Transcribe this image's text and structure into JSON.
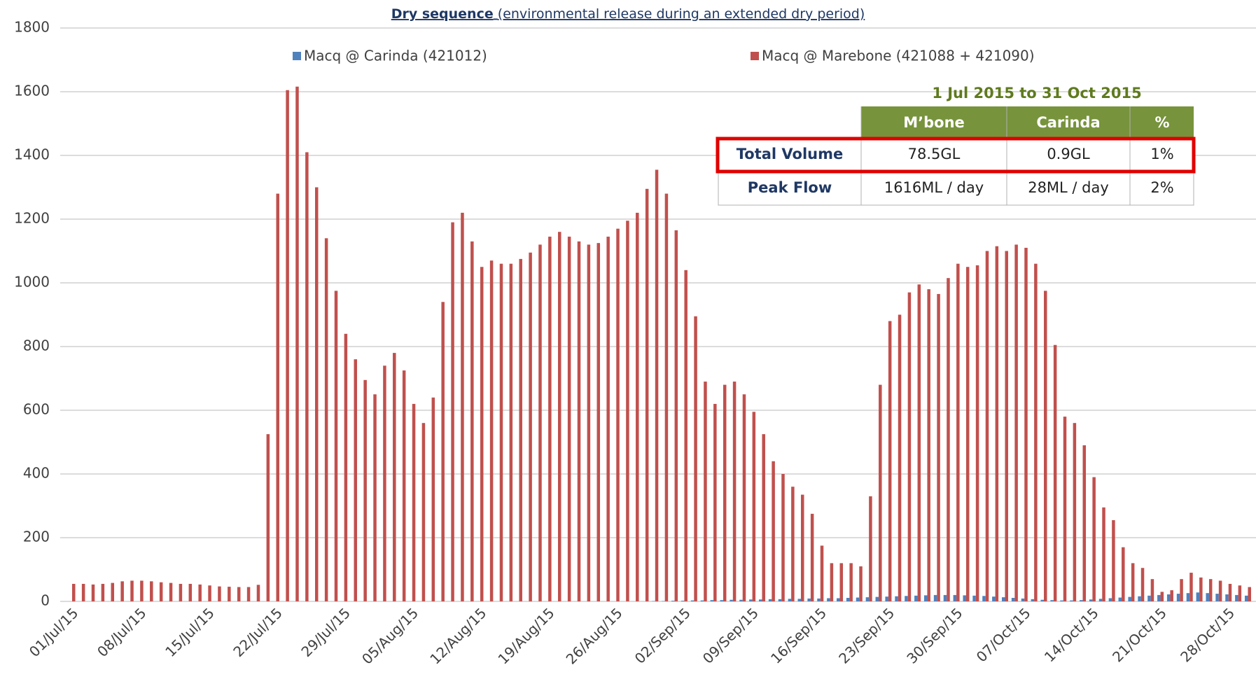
{
  "chart_data": {
    "type": "bar",
    "title": "Dry sequence",
    "subtitle": "(environmental release during an extended dry period)",
    "categories": [
      "01/Jul/15",
      null,
      null,
      null,
      null,
      null,
      null,
      "08/Jul/15",
      null,
      null,
      null,
      null,
      null,
      null,
      "15/Jul/15",
      null,
      null,
      null,
      null,
      null,
      null,
      "22/Jul/15",
      null,
      null,
      null,
      null,
      null,
      null,
      "29/Jul/15",
      null,
      null,
      null,
      null,
      null,
      null,
      "05/Aug/15",
      null,
      null,
      null,
      null,
      null,
      null,
      "12/Aug/15",
      null,
      null,
      null,
      null,
      null,
      null,
      "19/Aug/15",
      null,
      null,
      null,
      null,
      null,
      null,
      "26/Aug/15",
      null,
      null,
      null,
      null,
      null,
      null,
      "02/Sep/15",
      null,
      null,
      null,
      null,
      null,
      null,
      "09/Sep/15",
      null,
      null,
      null,
      null,
      null,
      null,
      "16/Sep/15",
      null,
      null,
      null,
      null,
      null,
      null,
      "23/Sep/15",
      null,
      null,
      null,
      null,
      null,
      null,
      "30/Sep/15",
      null,
      null,
      null,
      null,
      null,
      null,
      "07/Oct/15",
      null,
      null,
      null,
      null,
      null,
      null,
      "14/Oct/15",
      null,
      null,
      null,
      null,
      null,
      null,
      "21/Oct/15",
      null,
      null,
      null,
      null,
      null,
      null,
      "28/Oct/15",
      null,
      null
    ],
    "series": [
      {
        "name": "Macq @ Carinda (421012)",
        "color": "#4f81bd",
        "values": [
          0,
          0,
          0,
          0,
          0,
          0,
          0,
          0,
          0,
          0,
          0,
          0,
          0,
          0,
          0,
          0,
          0,
          0,
          0,
          0,
          0,
          0,
          0,
          0,
          0,
          0,
          0,
          0,
          0,
          0,
          0,
          0,
          0,
          0,
          0,
          0,
          0,
          0,
          0,
          0,
          0,
          0,
          0,
          0,
          0,
          0,
          0,
          0,
          0,
          0,
          0,
          0,
          0,
          0,
          0,
          0,
          0,
          0,
          0,
          0,
          1,
          1,
          2,
          2,
          3,
          3,
          4,
          4,
          5,
          5,
          6,
          6,
          7,
          7,
          8,
          8,
          9,
          9,
          10,
          10,
          11,
          12,
          13,
          14,
          15,
          16,
          17,
          18,
          19,
          20,
          20,
          20,
          19,
          18,
          17,
          15,
          13,
          11,
          9,
          7,
          5,
          4,
          3,
          3,
          4,
          6,
          8,
          10,
          12,
          14,
          16,
          18,
          20,
          22,
          24,
          26,
          28,
          26,
          24,
          22,
          20,
          18
        ]
      },
      {
        "name": "Macq @ Marebone (421088 + 421090)",
        "color": "#c0504d",
        "values": [
          55,
          55,
          53,
          55,
          58,
          63,
          65,
          65,
          63,
          60,
          58,
          55,
          55,
          53,
          50,
          47,
          46,
          45,
          45,
          52,
          525,
          1280,
          1605,
          1616,
          1410,
          1300,
          1140,
          975,
          840,
          760,
          695,
          650,
          740,
          780,
          725,
          620,
          560,
          640,
          940,
          1190,
          1220,
          1130,
          1050,
          1070,
          1060,
          1060,
          1075,
          1095,
          1120,
          1145,
          1160,
          1145,
          1130,
          1120,
          1125,
          1145,
          1170,
          1195,
          1220,
          1295,
          1355,
          1280,
          1165,
          1040,
          895,
          690,
          620,
          680,
          690,
          650,
          595,
          525,
          440,
          400,
          360,
          335,
          275,
          175,
          120,
          120,
          120,
          110,
          330,
          680,
          880,
          900,
          970,
          995,
          980,
          965,
          1015,
          1060,
          1050,
          1055,
          1100,
          1115,
          1100,
          1120,
          1110,
          1060,
          975,
          805,
          580,
          560,
          490,
          390,
          295,
          255,
          170,
          120,
          105,
          70,
          30,
          35,
          70,
          90,
          75,
          70,
          65,
          55,
          50,
          45
        ]
      }
    ],
    "ylim": [
      0,
      1800
    ],
    "yticks": [
      0,
      200,
      400,
      600,
      800,
      1000,
      1200,
      1400,
      1600,
      1800
    ],
    "grid": true,
    "table": {
      "title": "1 Jul 2015 to 31 Oct 2015",
      "headers": [
        "M’bone",
        "Carinda",
        "%"
      ],
      "rows": [
        [
          "Total Volume",
          "78.5GL",
          "0.9GL",
          "1%"
        ],
        [
          "Peak Flow",
          "1616ML / day",
          "28ML / day",
          "2%"
        ]
      ]
    }
  }
}
